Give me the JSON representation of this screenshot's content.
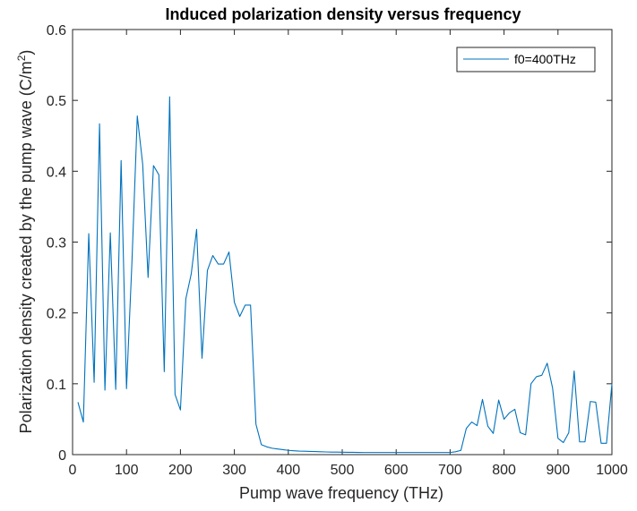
{
  "chart_data": {
    "type": "line",
    "title": "Induced polarization density versus frequency",
    "xlabel": "Pump wave frequency (THz)",
    "ylabel": "Polarization density created by the pump wave (C/m",
    "ylabel_superscript": "2",
    "ylabel_close": ")",
    "xlim": [
      0,
      1000
    ],
    "ylim": [
      0,
      0.6
    ],
    "xticks": [
      0,
      100,
      200,
      300,
      400,
      500,
      600,
      700,
      800,
      900,
      1000
    ],
    "yticks": [
      0,
      0.1,
      0.2,
      0.3,
      0.4,
      0.5,
      0.6
    ],
    "xtick_labels": [
      "0",
      "100",
      "200",
      "300",
      "400",
      "500",
      "600",
      "700",
      "800",
      "900",
      "1000"
    ],
    "ytick_labels": [
      "0",
      "0.1",
      "0.2",
      "0.3",
      "0.4",
      "0.5",
      "0.6"
    ],
    "grid": false,
    "legend_position": "top-right",
    "series": [
      {
        "name": "f0=400THz",
        "color": "#0072bd",
        "x": [
          10,
          20,
          30,
          40,
          50,
          60,
          70,
          80,
          90,
          100,
          110,
          120,
          130,
          140,
          150,
          160,
          170,
          180,
          190,
          200,
          210,
          220,
          230,
          240,
          250,
          260,
          270,
          280,
          290,
          300,
          310,
          320,
          330,
          340,
          350,
          360,
          370,
          380,
          390,
          400,
          410,
          420,
          430,
          440,
          450,
          460,
          470,
          480,
          490,
          500,
          510,
          520,
          530,
          540,
          550,
          560,
          570,
          580,
          590,
          600,
          610,
          620,
          630,
          640,
          650,
          660,
          670,
          680,
          690,
          700,
          710,
          720,
          730,
          740,
          750,
          760,
          770,
          780,
          790,
          800,
          810,
          820,
          830,
          840,
          850,
          860,
          870,
          880,
          890,
          900,
          910,
          920,
          930,
          940,
          950,
          960,
          970,
          980,
          990,
          1000
        ],
        "y": [
          0.074,
          0.046,
          0.312,
          0.102,
          0.467,
          0.091,
          0.313,
          0.092,
          0.415,
          0.093,
          0.27,
          0.478,
          0.41,
          0.25,
          0.408,
          0.395,
          0.117,
          0.505,
          0.085,
          0.063,
          0.22,
          0.255,
          0.318,
          0.136,
          0.26,
          0.281,
          0.269,
          0.269,
          0.286,
          0.215,
          0.195,
          0.211,
          0.211,
          0.043,
          0.014,
          0.011,
          0.009,
          0.008,
          0.007,
          0.006,
          0.0055,
          0.005,
          0.0048,
          0.0045,
          0.0043,
          0.004,
          0.0038,
          0.0036,
          0.0035,
          0.0034,
          0.0033,
          0.0032,
          0.0031,
          0.003,
          0.003,
          0.003,
          0.003,
          0.003,
          0.003,
          0.003,
          0.003,
          0.003,
          0.003,
          0.003,
          0.003,
          0.003,
          0.003,
          0.003,
          0.003,
          0.003,
          0.004,
          0.006,
          0.037,
          0.046,
          0.041,
          0.078,
          0.04,
          0.03,
          0.077,
          0.05,
          0.059,
          0.064,
          0.031,
          0.028,
          0.1,
          0.11,
          0.112,
          0.129,
          0.094,
          0.023,
          0.017,
          0.031,
          0.118,
          0.018,
          0.018,
          0.075,
          0.074,
          0.016,
          0.016,
          0.1
        ]
      }
    ]
  }
}
